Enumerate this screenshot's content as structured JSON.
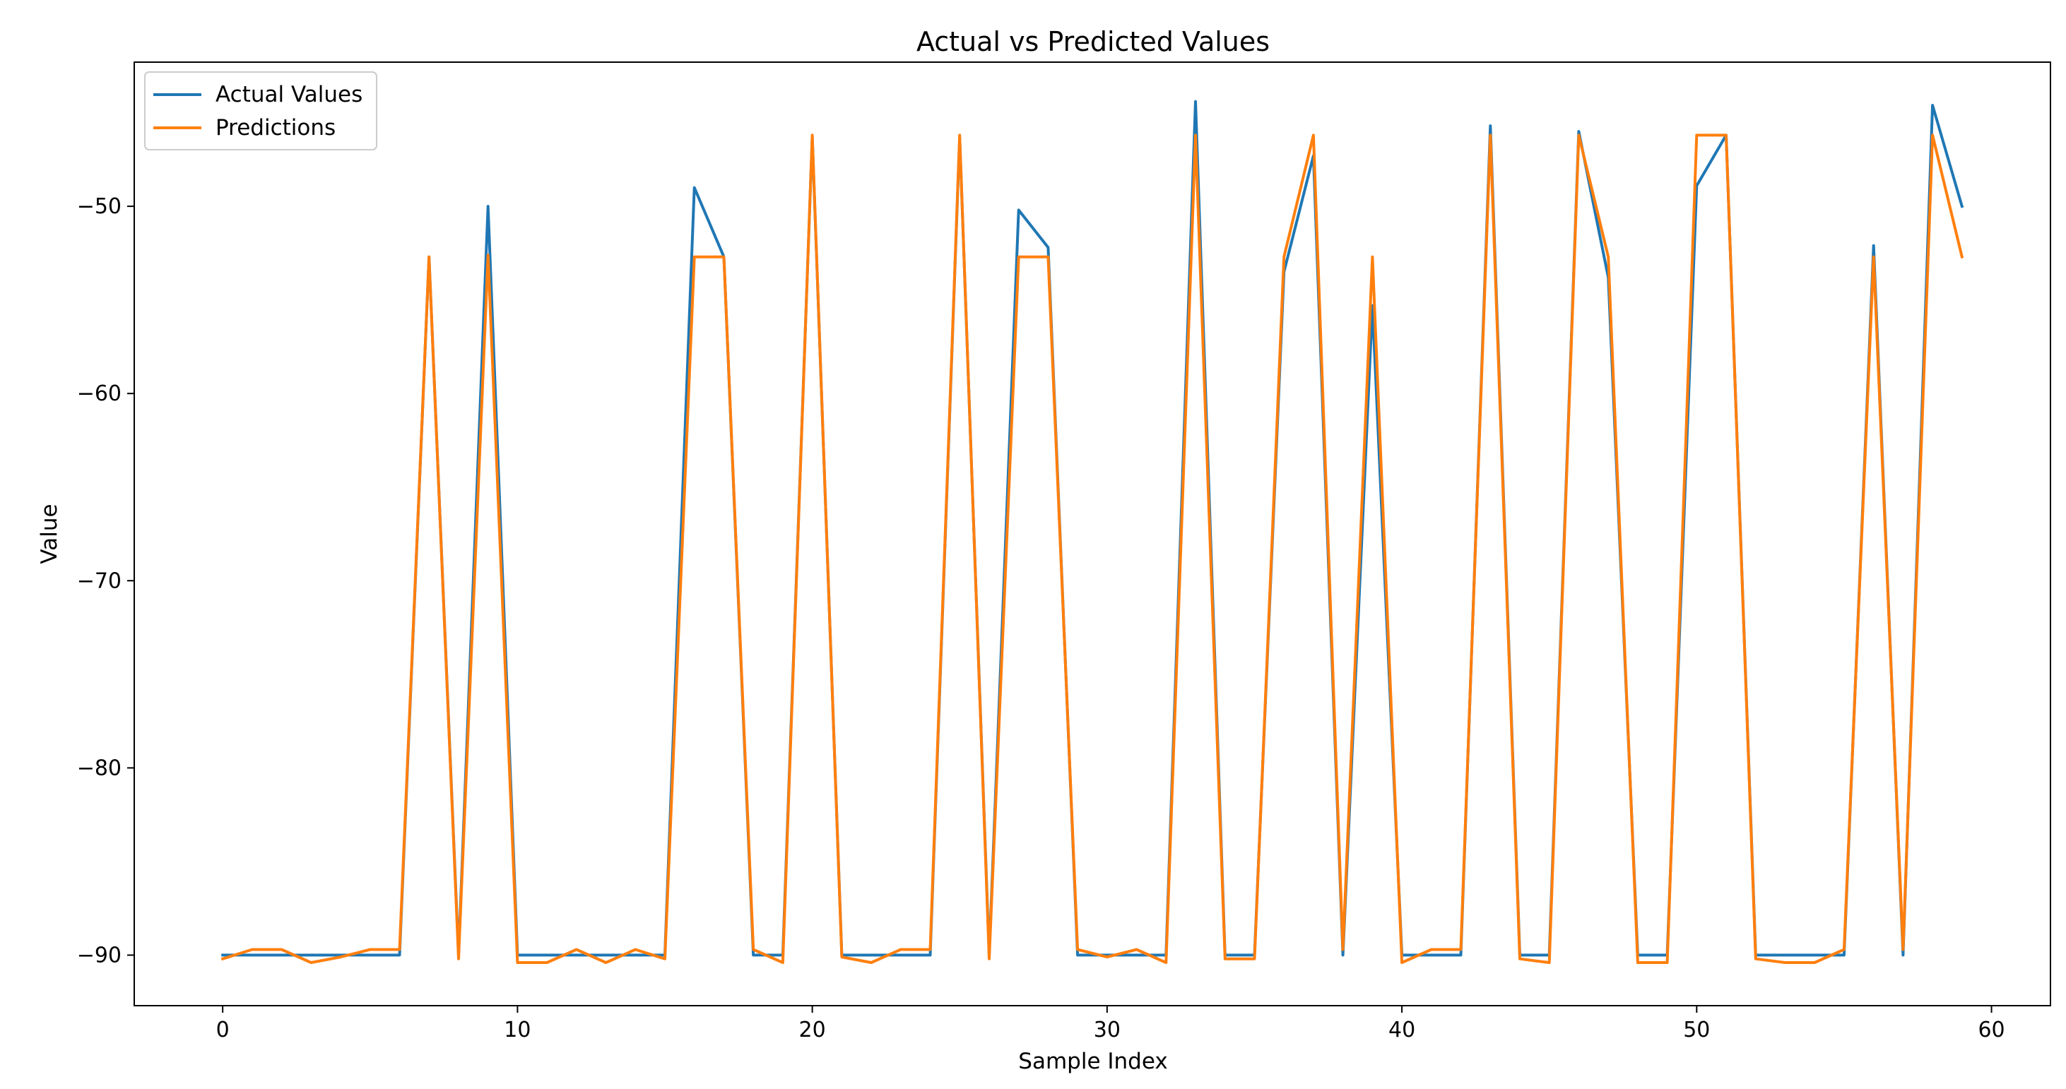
{
  "chart_data": {
    "type": "line",
    "title": "Actual vs Predicted Values",
    "xlabel": "Sample Index",
    "ylabel": "Value",
    "xlim": [
      -3,
      62
    ],
    "ylim": [
      -92.7,
      -42.3
    ],
    "xticks": [
      0,
      10,
      20,
      30,
      40,
      50,
      60
    ],
    "yticks": [
      -90,
      -80,
      -70,
      -60,
      -50
    ],
    "grid": false,
    "legend_position": "top-left",
    "series": [
      {
        "name": "Actual Values",
        "color": "#1f77b4",
        "x": [
          0,
          1,
          2,
          3,
          4,
          5,
          6,
          7,
          8,
          9,
          10,
          11,
          12,
          13,
          14,
          15,
          16,
          17,
          18,
          19,
          20,
          21,
          22,
          23,
          24,
          25,
          26,
          27,
          28,
          29,
          30,
          31,
          32,
          33,
          34,
          35,
          36,
          37,
          38,
          39,
          40,
          41,
          42,
          43,
          44,
          45,
          46,
          47,
          48,
          49,
          50,
          51,
          52,
          53,
          54,
          55,
          56,
          57,
          58,
          59
        ],
        "values": [
          -90,
          -90,
          -90,
          -90,
          -90,
          -90,
          -90,
          -52.7,
          -90,
          -50,
          -90,
          -90,
          -90,
          -90,
          -90,
          -90,
          -49,
          -52.7,
          -90,
          -90,
          -46.3,
          -90,
          -90,
          -90,
          -90,
          -46.3,
          -90,
          -50.2,
          -52.2,
          -90,
          -90,
          -90,
          -90,
          -44.4,
          -90,
          -90,
          -53.5,
          -47.3,
          -90,
          -55.3,
          -90,
          -90,
          -90,
          -45.7,
          -90,
          -90,
          -46,
          -53.8,
          -90,
          -90,
          -48.9,
          -46.2,
          -90,
          -90,
          -90,
          -90,
          -52.1,
          -90,
          -44.6,
          -50
        ]
      },
      {
        "name": "Predictions",
        "color": "#ff7f0e",
        "x": [
          0,
          1,
          2,
          3,
          4,
          5,
          6,
          7,
          8,
          9,
          10,
          11,
          12,
          13,
          14,
          15,
          16,
          17,
          18,
          19,
          20,
          21,
          22,
          23,
          24,
          25,
          26,
          27,
          28,
          29,
          30,
          31,
          32,
          33,
          34,
          35,
          36,
          37,
          38,
          39,
          40,
          41,
          42,
          43,
          44,
          45,
          46,
          47,
          48,
          49,
          50,
          51,
          52,
          53,
          54,
          55,
          56,
          57,
          58,
          59
        ],
        "values": [
          -90.2,
          -89.7,
          -89.7,
          -90.4,
          -90.1,
          -89.7,
          -89.7,
          -52.7,
          -90.2,
          -52.6,
          -90.4,
          -90.4,
          -89.7,
          -90.4,
          -89.7,
          -90.2,
          -52.7,
          -52.7,
          -89.7,
          -90.4,
          -46.2,
          -90.1,
          -90.4,
          -89.7,
          -89.7,
          -46.2,
          -90.2,
          -52.7,
          -52.7,
          -89.7,
          -90.1,
          -89.7,
          -90.4,
          -46.2,
          -90.2,
          -90.2,
          -52.7,
          -46.2,
          -89.7,
          -52.7,
          -90.4,
          -89.7,
          -89.7,
          -46.2,
          -90.2,
          -90.4,
          -46.2,
          -52.7,
          -90.4,
          -90.4,
          -46.2,
          -46.2,
          -90.2,
          -90.4,
          -90.4,
          -89.7,
          -52.7,
          -89.7,
          -46.2,
          -52.7
        ]
      }
    ]
  }
}
